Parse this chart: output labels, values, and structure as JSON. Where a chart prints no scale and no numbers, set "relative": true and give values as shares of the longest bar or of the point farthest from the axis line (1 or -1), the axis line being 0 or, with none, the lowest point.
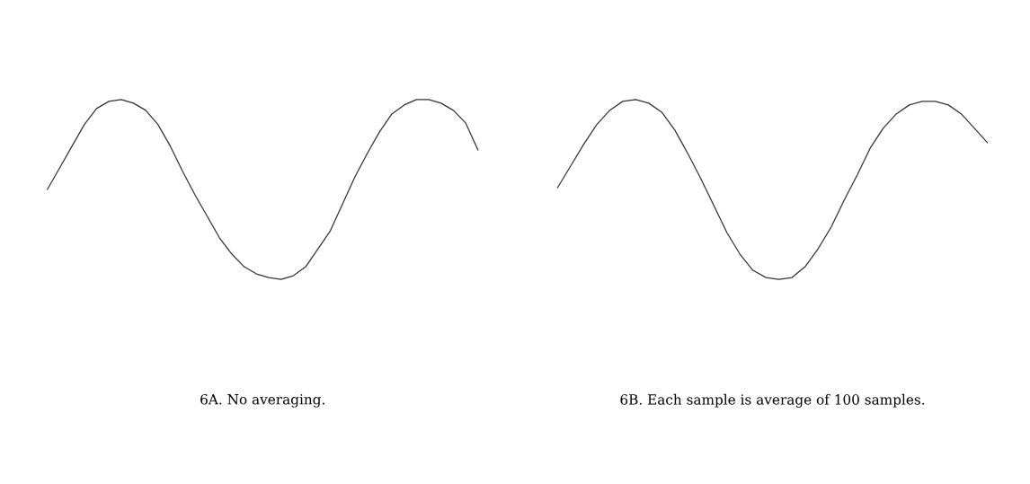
{
  "chart_data": [
    {
      "type": "line",
      "relative": true,
      "xlabel": "6A. No averaging.",
      "grid": false,
      "legend": false,
      "categories": [
        null,
        null,
        null,
        null,
        null,
        null,
        null,
        null,
        null,
        null,
        null,
        null,
        null,
        null,
        null,
        null,
        null,
        null,
        null,
        null,
        null,
        null,
        null,
        null,
        null,
        null,
        null,
        null,
        null,
        null,
        null,
        null,
        null,
        null,
        null,
        null
      ],
      "series": [
        {
          "color": "#333333",
          "values": [
            0.5,
            0.62,
            0.74,
            0.86,
            0.95,
            0.99,
            1.0,
            0.98,
            0.94,
            0.86,
            0.74,
            0.6,
            0.47,
            0.35,
            0.23,
            0.14,
            0.07,
            0.03,
            0.01,
            0,
            0.02,
            0.07,
            0.17,
            0.27,
            0.42,
            0.57,
            0.7,
            0.82,
            0.92,
            0.97,
            1.0,
            1.0,
            0.98,
            0.94,
            0.87,
            0.72
          ]
        }
      ]
    },
    {
      "type": "line",
      "relative": true,
      "xlabel": "6B. Each sample is average of 100 samples.",
      "grid": false,
      "legend": false,
      "categories": [
        null,
        null,
        null,
        null,
        null,
        null,
        null,
        null,
        null,
        null,
        null,
        null,
        null,
        null,
        null,
        null,
        null,
        null,
        null,
        null,
        null,
        null,
        null,
        null,
        null,
        null,
        null,
        null,
        null,
        null,
        null,
        null,
        null,
        null
      ],
      "series": [
        {
          "color": "#333333",
          "values": [
            0.51,
            0.63,
            0.75,
            0.86,
            0.94,
            0.99,
            1.0,
            0.98,
            0.93,
            0.83,
            0.7,
            0.56,
            0.41,
            0.26,
            0.14,
            0.05,
            0.01,
            0,
            0.01,
            0.07,
            0.17,
            0.29,
            0.44,
            0.58,
            0.73,
            0.84,
            0.92,
            0.97,
            0.99,
            0.99,
            0.97,
            0.92,
            0.84,
            0.76
          ]
        }
      ]
    }
  ]
}
